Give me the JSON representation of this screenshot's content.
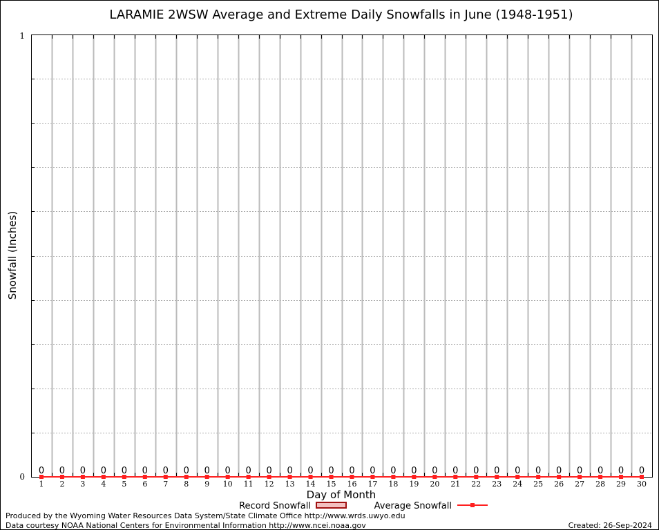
{
  "chart_data": {
    "type": "bar",
    "title": "LARAMIE 2WSW Average and Extreme Daily Snowfalls in June (1948-1951)",
    "xlabel": "Day of Month",
    "ylabel": "Snowfall (Inches)",
    "ylim": [
      0,
      1
    ],
    "y_tick_labels": [
      "0",
      "1"
    ],
    "grid": true,
    "legend_placement": "bottom-center",
    "categories": [
      1,
      2,
      3,
      4,
      5,
      6,
      7,
      8,
      9,
      10,
      11,
      12,
      13,
      14,
      15,
      16,
      17,
      18,
      19,
      20,
      21,
      22,
      23,
      24,
      25,
      26,
      27,
      28,
      29,
      30
    ],
    "series": [
      {
        "name": "Record Snowfall",
        "type": "bar",
        "color": "#b22222",
        "values": [
          0,
          0,
          0,
          0,
          0,
          0,
          0,
          0,
          0,
          0,
          0,
          0,
          0,
          0,
          0,
          0,
          0,
          0,
          0,
          0,
          0,
          0,
          0,
          0,
          0,
          0,
          0,
          0,
          0,
          0
        ]
      },
      {
        "name": "Average Snowfall",
        "type": "line",
        "color": "#ff2020",
        "values": [
          0,
          0,
          0,
          0,
          0,
          0,
          0,
          0,
          0,
          0,
          0,
          0,
          0,
          0,
          0,
          0,
          0,
          0,
          0,
          0,
          0,
          0,
          0,
          0,
          0,
          0,
          0,
          0,
          0,
          0
        ]
      }
    ],
    "data_labels": [
      "0",
      "0",
      "0",
      "0",
      "0",
      "0",
      "0",
      "0",
      "0",
      "0",
      "0",
      "0",
      "0",
      "0",
      "0",
      "0",
      "0",
      "0",
      "0",
      "0",
      "0",
      "0",
      "0",
      "0",
      "0",
      "0",
      "0",
      "0",
      "0",
      "0"
    ]
  },
  "footer": {
    "produced_by": "Produced by the Wyoming Water Resources Data System/State Climate Office http://www.wrds.uwyo.edu",
    "data_courtesy": "Data courtesy NOAA National Centers for Environmental Information http://www.ncei.noaa.gov",
    "created": "Created: 26-Sep-2024"
  }
}
